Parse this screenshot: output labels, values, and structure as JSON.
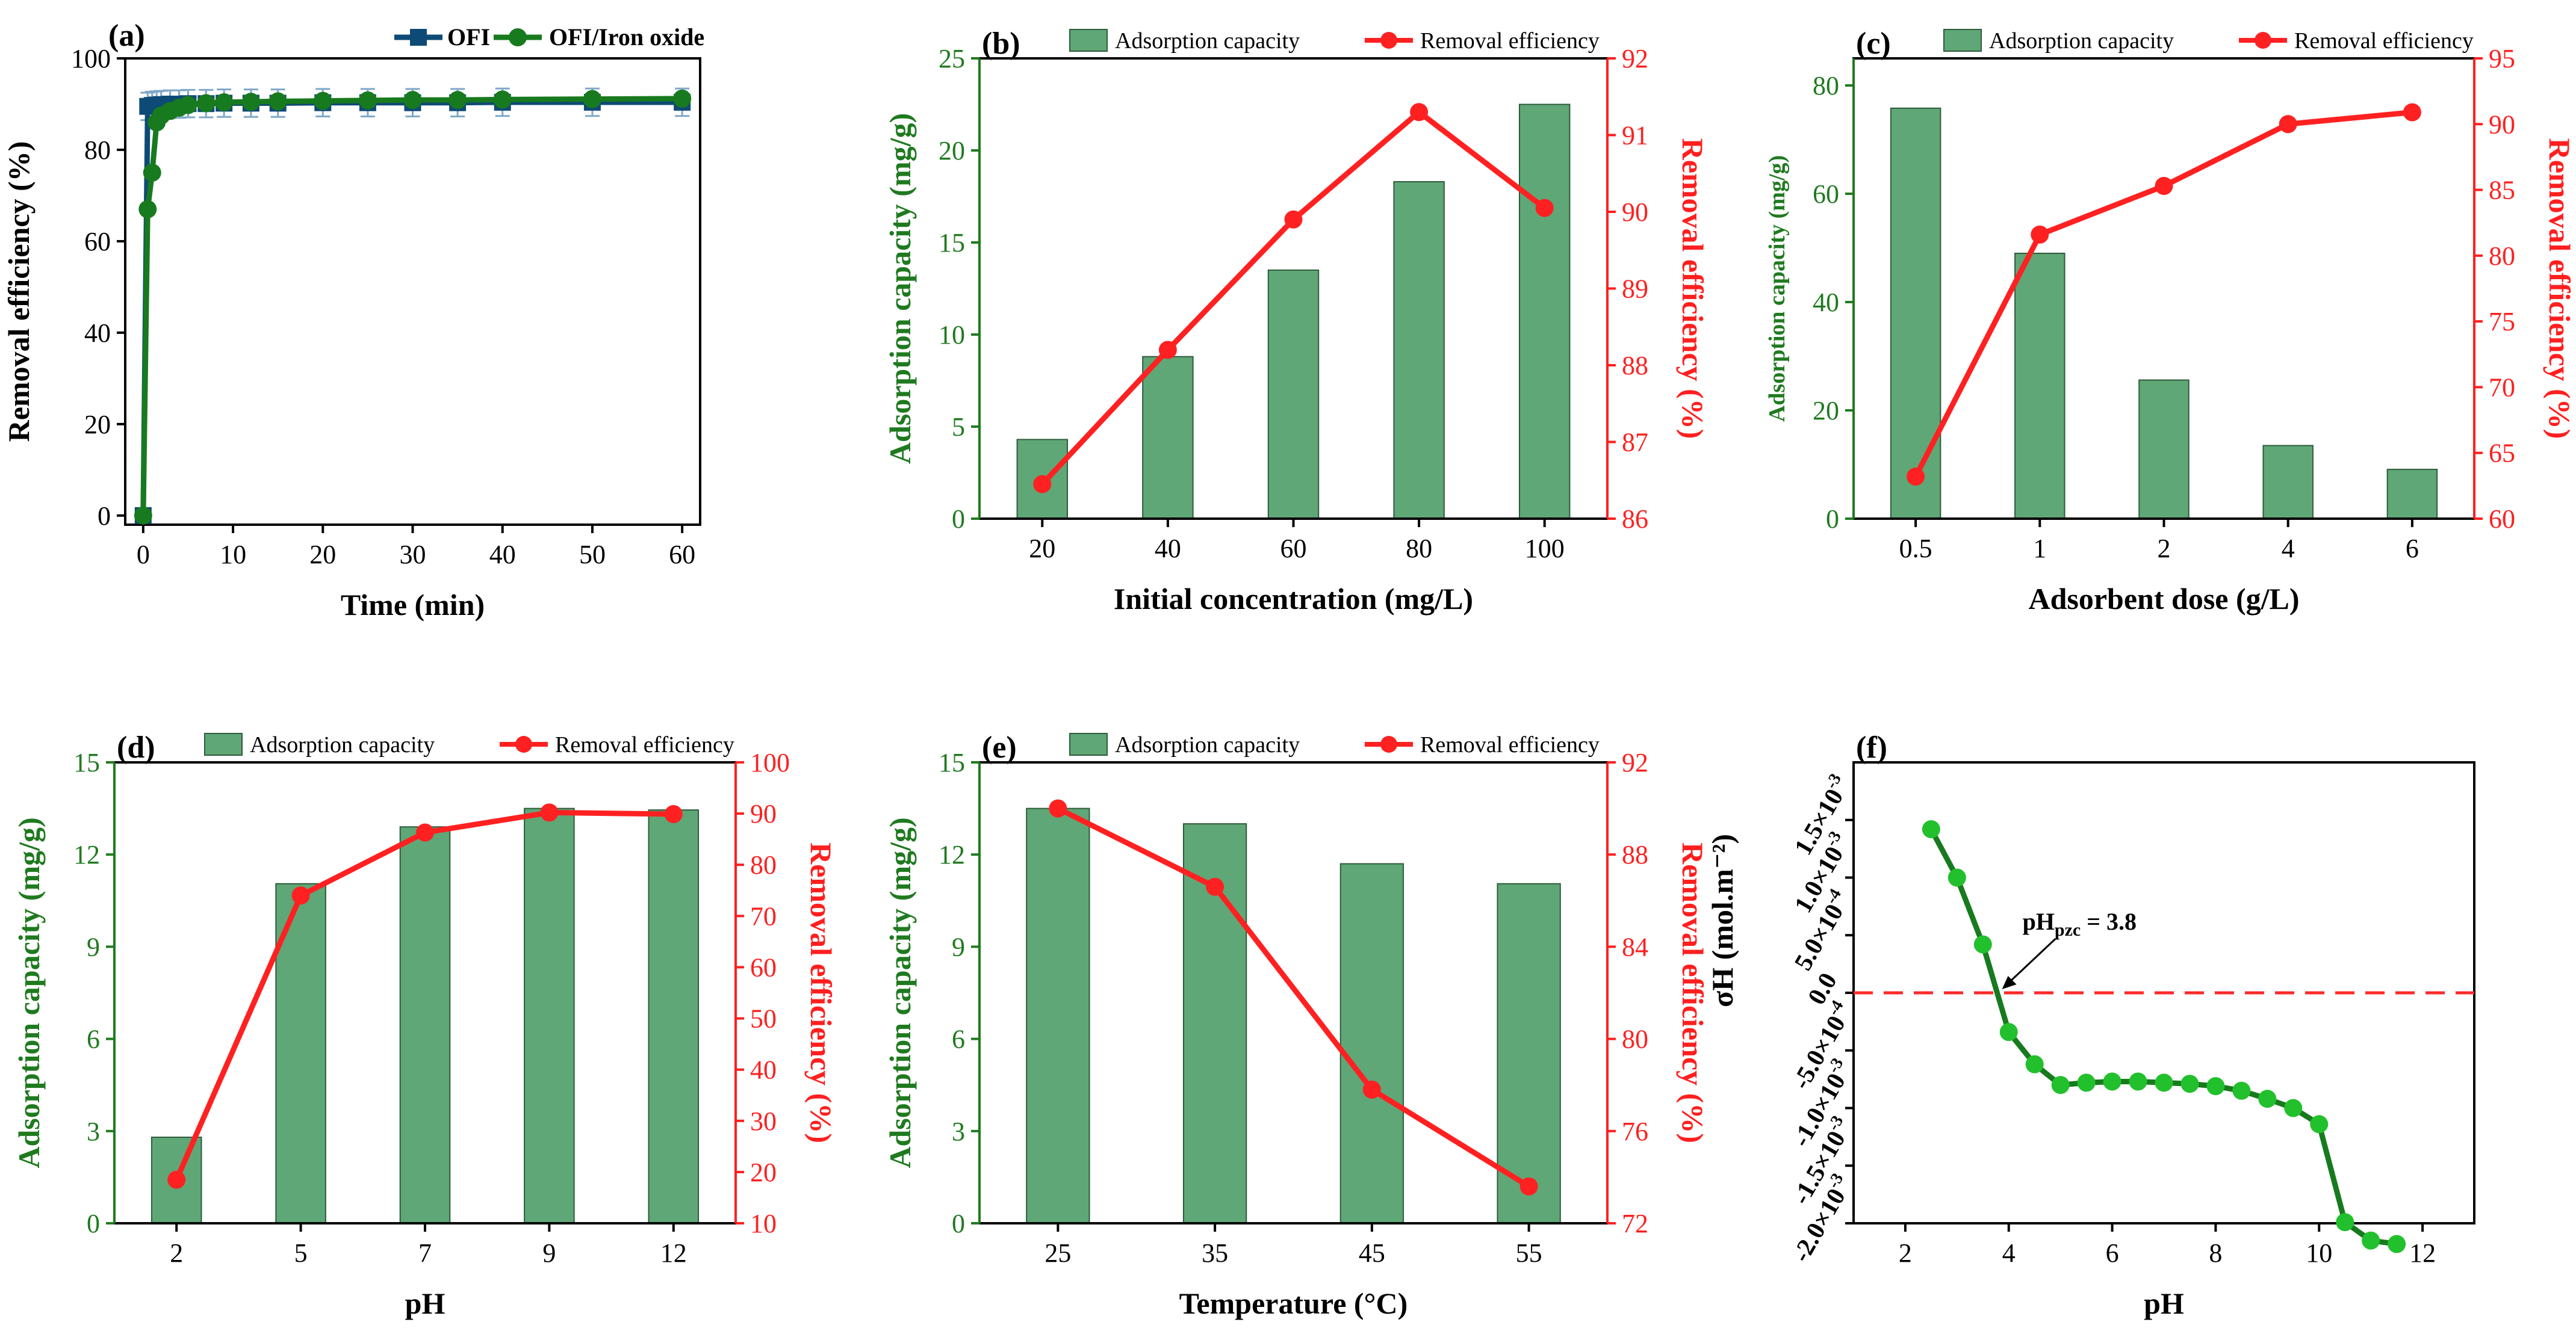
{
  "chart_data": [
    {
      "id": "a",
      "panel_label": "(a)",
      "type": "line",
      "xlabel": "Time (min)",
      "ylabel": "Removal efficiency (%)",
      "xlim": [
        -2,
        62
      ],
      "ylim": [
        -2,
        100
      ],
      "xticks": [
        "0",
        "10",
        "20",
        "30",
        "40",
        "50",
        "60"
      ],
      "xtick_values": [
        0,
        10,
        20,
        30,
        40,
        50,
        60
      ],
      "yticks": [
        "0",
        "20",
        "40",
        "60",
        "80",
        "100"
      ],
      "ytick_values": [
        0,
        20,
        40,
        60,
        80,
        100
      ],
      "legend_position": "top-right",
      "series": [
        {
          "name": "OFI",
          "color": "#0e4a76",
          "marker": "square",
          "x": [
            0,
            0.5,
            1,
            1.5,
            2,
            3,
            4,
            5,
            7,
            9,
            12,
            15,
            20,
            25,
            30,
            35,
            40,
            50,
            60
          ],
          "y": [
            0,
            89.5,
            89.7,
            89.8,
            89.9,
            90.0,
            90.0,
            90.1,
            90.1,
            90.2,
            90.2,
            90.2,
            90.3,
            90.3,
            90.3,
            90.3,
            90.4,
            90.4,
            90.4
          ],
          "error": 3
        },
        {
          "name": "OFI/Iron oxide",
          "color": "#187a1e",
          "marker": "circle",
          "x": [
            0,
            0.5,
            1,
            1.5,
            2,
            3,
            4,
            5,
            7,
            9,
            12,
            15,
            20,
            25,
            30,
            35,
            40,
            50,
            60
          ],
          "y": [
            0,
            67,
            75,
            86,
            87.5,
            88.5,
            89.2,
            89.8,
            90.2,
            90.4,
            90.5,
            90.6,
            90.7,
            90.8,
            90.9,
            90.9,
            91.0,
            91.1,
            91.2
          ],
          "error": 0
        }
      ]
    },
    {
      "id": "b",
      "panel_label": "(b)",
      "type": "bar+line",
      "xlabel": "Initial concentration (mg/L)",
      "ylabel": "Adsorption capacity (mg/g)",
      "y2label": "Removal efficiency (%)",
      "categories": [
        "20",
        "40",
        "60",
        "80",
        "100"
      ],
      "ylim": [
        0,
        25
      ],
      "yticks": [
        "0",
        "5",
        "10",
        "15",
        "20",
        "25"
      ],
      "ytick_values": [
        0,
        5,
        10,
        15,
        20,
        25
      ],
      "y2lim": [
        86,
        92
      ],
      "y2ticks": [
        "86",
        "87",
        "88",
        "89",
        "90",
        "91",
        "92"
      ],
      "y2tick_values": [
        86,
        87,
        88,
        89,
        90,
        91,
        92
      ],
      "bar_series": {
        "name": "Adsorption capacity",
        "values": [
          4.3,
          8.8,
          13.5,
          18.3,
          22.5
        ]
      },
      "line_series": {
        "name": "Removal efficiency",
        "values": [
          86.45,
          88.2,
          89.9,
          91.3,
          90.05
        ]
      },
      "legend_position": "top"
    },
    {
      "id": "c",
      "panel_label": "(c)",
      "type": "bar+line",
      "xlabel": "Adsorbent dose (g/L)",
      "ylabel": "Adsorption capacity (mg/g)",
      "y2label": "Removal efficiency (%)",
      "categories": [
        "0.5",
        "1",
        "2",
        "4",
        "6"
      ],
      "ylim": [
        0,
        85
      ],
      "yticks": [
        "0",
        "20",
        "40",
        "60",
        "80"
      ],
      "ytick_values": [
        0,
        20,
        40,
        60,
        80
      ],
      "y2lim": [
        60,
        95
      ],
      "y2ticks": [
        "60",
        "65",
        "70",
        "75",
        "80",
        "85",
        "90",
        "95"
      ],
      "y2tick_values": [
        60,
        65,
        70,
        75,
        80,
        85,
        90,
        95
      ],
      "bar_series": {
        "name": "Adsorption capacity",
        "values": [
          75.8,
          49.0,
          25.6,
          13.5,
          9.1
        ]
      },
      "line_series": {
        "name": "Removal efficiency",
        "values": [
          63.2,
          81.6,
          85.3,
          90.0,
          90.9
        ]
      },
      "legend_position": "top"
    },
    {
      "id": "d",
      "panel_label": "(d)",
      "type": "bar+line",
      "xlabel": "pH",
      "ylabel": "Adsorption capacity (mg/g)",
      "y2label": "Removal efficiency (%)",
      "categories": [
        "2",
        "5",
        "7",
        "9",
        "12"
      ],
      "ylim": [
        0,
        15
      ],
      "yticks": [
        "0",
        "3",
        "6",
        "9",
        "12",
        "15"
      ],
      "ytick_values": [
        0,
        3,
        6,
        9,
        12,
        15
      ],
      "y2lim": [
        10,
        100
      ],
      "y2ticks": [
        "10",
        "20",
        "30",
        "40",
        "50",
        "60",
        "70",
        "80",
        "90",
        "100"
      ],
      "y2tick_values": [
        10,
        20,
        30,
        40,
        50,
        60,
        70,
        80,
        90,
        100
      ],
      "bar_series": {
        "name": "Adsorption capacity",
        "values": [
          2.8,
          11.05,
          12.9,
          13.5,
          13.45
        ]
      },
      "line_series": {
        "name": "Removal efficiency",
        "values": [
          18.5,
          74,
          86.3,
          90.2,
          89.9
        ]
      },
      "legend_position": "top"
    },
    {
      "id": "e",
      "panel_label": "(e)",
      "type": "bar+line",
      "xlabel": "Temperature (°C)",
      "ylabel": "Adsorption capacity (mg/g)",
      "y2label": "Removal efficiency (%)",
      "categories": [
        "25",
        "35",
        "45",
        "55"
      ],
      "ylim": [
        0,
        15
      ],
      "yticks": [
        "0",
        "3",
        "6",
        "9",
        "12",
        "15"
      ],
      "ytick_values": [
        0,
        3,
        6,
        9,
        12,
        15
      ],
      "y2lim": [
        72,
        92
      ],
      "y2ticks": [
        "72",
        "76",
        "80",
        "84",
        "88",
        "92"
      ],
      "y2tick_values": [
        72,
        76,
        80,
        84,
        88,
        92
      ],
      "bar_series": {
        "name": "Adsorption capacity",
        "values": [
          13.5,
          13.0,
          11.7,
          11.05
        ]
      },
      "line_series": {
        "name": "Removal efficiency",
        "values": [
          90,
          86.6,
          77.8,
          73.6
        ]
      },
      "legend_position": "top"
    },
    {
      "id": "f",
      "panel_label": "(f)",
      "type": "line",
      "xlabel": "pH",
      "ylabel": "σH (mol.m⁻²)",
      "xlim": [
        1,
        13
      ],
      "ylim": [
        -0.002,
        0.002
      ],
      "xticks": [
        "2",
        "4",
        "6",
        "8",
        "10",
        "12"
      ],
      "xtick_values": [
        2,
        4,
        6,
        8,
        10,
        12
      ],
      "ytick_values": [
        -0.002,
        -0.0015,
        -0.001,
        -0.0005,
        0,
        0.0005,
        0.001,
        0.0015
      ],
      "ytick_mant": [
        "-2.0×10",
        "-1.5×10",
        "-1.0×10",
        "-5.0×10",
        "0.0",
        "5.0×10",
        "1.0×10",
        "1.5×10"
      ],
      "ytick_exp": [
        "-3",
        "-3",
        "-3",
        "-4",
        "",
        "-4",
        "-3",
        "-3"
      ],
      "annotation": {
        "text": "pH",
        "sub": "pzc",
        "suffix": " = 3.8",
        "x": 3.8,
        "y": 0
      },
      "zero_line": true,
      "series": [
        {
          "name": "σH",
          "color": "#187a1e",
          "marker_fill": "#22c02c",
          "x": [
            2.5,
            3.0,
            3.5,
            4.0,
            4.5,
            5.0,
            5.5,
            6.0,
            6.5,
            7.0,
            7.5,
            8.0,
            8.5,
            9.0,
            9.5,
            10.0,
            10.5,
            11.0,
            11.5
          ],
          "y": [
            0.00142,
            0.001,
            0.00042,
            -0.00034,
            -0.00062,
            -0.0008,
            -0.00078,
            -0.00077,
            -0.00077,
            -0.00078,
            -0.00079,
            -0.00081,
            -0.00085,
            -0.00092,
            -0.001,
            -0.00114,
            -0.00199,
            -0.00215,
            -0.00218
          ]
        }
      ]
    }
  ],
  "colors": {
    "bar_fill": "#5fa777",
    "bar_stroke": "#2f5b3b",
    "line": "#ff2121",
    "axis_green": "#1f7a1f",
    "axis_red": "#ff1f1f",
    "ofi_blue": "#0e4a76",
    "dark_green": "#187a1e",
    "light_green": "#22c02c"
  }
}
